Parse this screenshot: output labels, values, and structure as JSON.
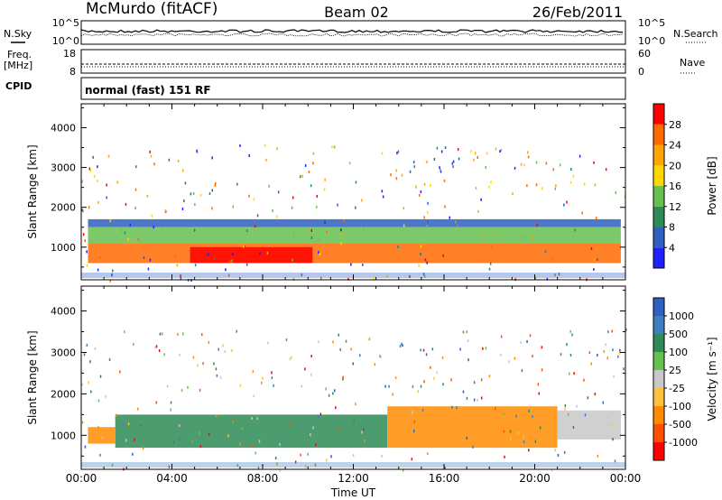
{
  "header": {
    "station": "McMurdo (fitACF)",
    "beam": "Beam 02",
    "date": "26/Feb/2011"
  },
  "top_panels": {
    "nsky_label": "N.Sky",
    "nsky_ticks": [
      "10^5",
      "10^0"
    ],
    "nsearch_label": "N.Search",
    "nsearch_ticks": [
      "10^5",
      "10^0"
    ],
    "freq_label_1": "Freq.",
    "freq_label_2": "[MHz]",
    "freq_ticks": [
      "18",
      "8"
    ],
    "nave_label": "Nave",
    "nave_ticks": [
      "60",
      "0"
    ],
    "cpid_label": "CPID",
    "cpid_text": "normal (fast) 151 RF"
  },
  "chart_data": [
    {
      "type": "heatmap",
      "name": "power",
      "ylabel": "Slant Range [km]",
      "ylim": [
        180,
        4600
      ],
      "yticks": [
        "1000",
        "2000",
        "3000",
        "4000"
      ],
      "ytick_values": [
        1000,
        2000,
        3000,
        4000
      ],
      "colorbar_label": "Power [dB]",
      "colorbar_ticks": [
        "4",
        "8",
        "12",
        "16",
        "20",
        "24",
        "28"
      ],
      "colorbar_colors": [
        "#2020ff",
        "#2f5fbf",
        "#2e8b57",
        "#66c050",
        "#ffd700",
        "#ffa500",
        "#ff6a00",
        "#ff0000"
      ],
      "bands": [
        {
          "x0": 0.3,
          "x1": 23.8,
          "y0": 600,
          "y1": 1100,
          "value": 26
        },
        {
          "x0": 0.3,
          "x1": 23.8,
          "y0": 1100,
          "y1": 1500,
          "value": 14
        },
        {
          "x0": 0.3,
          "x1": 23.8,
          "y0": 1500,
          "y1": 1700,
          "value": 6
        },
        {
          "x0": 4.8,
          "x1": 10.2,
          "y0": 600,
          "y1": 1000,
          "value": 29
        }
      ]
    },
    {
      "type": "heatmap",
      "name": "velocity",
      "ylabel": "Slant Range [km]",
      "ylim": [
        180,
        4600
      ],
      "yticks": [
        "1000",
        "2000",
        "3000",
        "4000"
      ],
      "ytick_values": [
        1000,
        2000,
        3000,
        4000
      ],
      "colorbar_label": "Velocity [m s⁻¹]",
      "colorbar_ticks": [
        "1000",
        "500",
        "100",
        "25",
        "-25",
        "-100",
        "-500",
        "-1000"
      ],
      "colorbar_colors": [
        "#2f5fbf",
        "#3f7fbf",
        "#2e8b57",
        "#66c050",
        "#c8c8c8",
        "#ffc040",
        "#ff8c00",
        "#ff5000",
        "#ff0000"
      ],
      "bands": [
        {
          "x0": 1.5,
          "x1": 13.5,
          "y0": 700,
          "y1": 1500,
          "value": 200
        },
        {
          "x0": 13.5,
          "x1": 21.0,
          "y0": 700,
          "y1": 1700,
          "value": -300
        },
        {
          "x0": 0.3,
          "x1": 1.5,
          "y0": 800,
          "y1": 1200,
          "value": -300
        },
        {
          "x0": 21.0,
          "x1": 23.8,
          "y0": 900,
          "y1": 1600,
          "value": 0
        }
      ]
    }
  ],
  "xaxis": {
    "label": "Time UT",
    "ticks": [
      "00:00",
      "04:00",
      "08:00",
      "12:00",
      "16:00",
      "20:00",
      "00:00"
    ],
    "range_hours": [
      0,
      24
    ]
  }
}
